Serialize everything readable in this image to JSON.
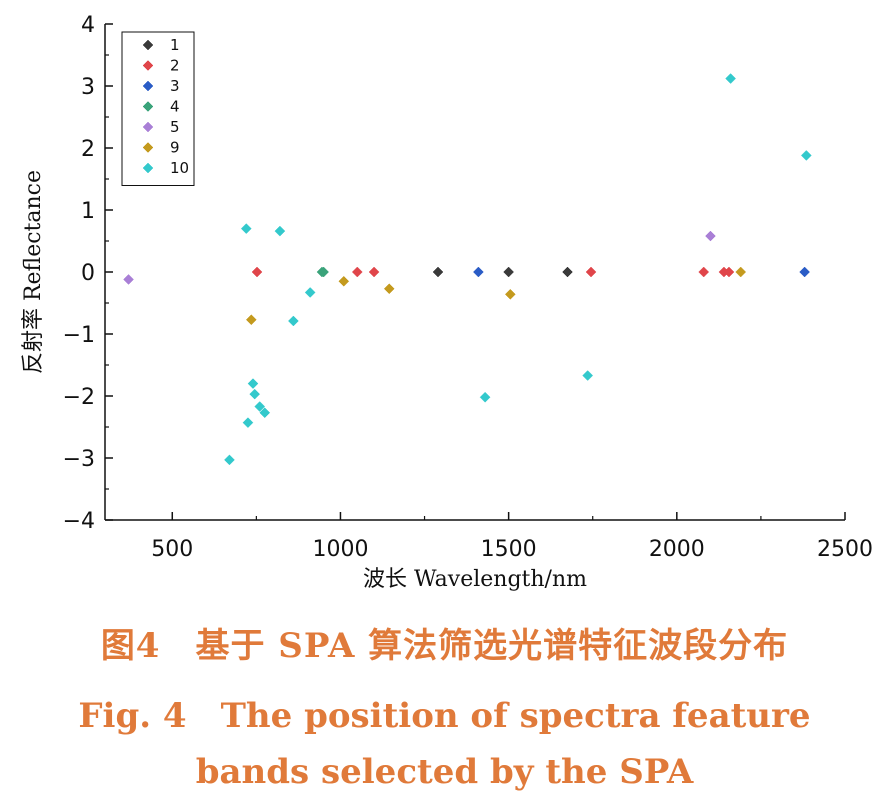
{
  "chart_data": {
    "type": "scatter",
    "title": "",
    "xlabel": "波长 Wavelength/nm",
    "ylabel": "反射率 Reflectance",
    "xlim": [
      300,
      2500
    ],
    "ylim": [
      -4,
      4
    ],
    "x_ticks": [
      500,
      1000,
      1500,
      2000,
      2500
    ],
    "y_ticks": [
      -4,
      -3,
      -2,
      -1,
      0,
      1,
      2,
      3,
      4
    ],
    "x_tick_labels": [
      "500",
      "1000",
      "1500",
      "2000",
      "2500"
    ],
    "y_tick_labels": [
      "−4",
      "−3",
      "−2",
      "−1",
      "0",
      "1",
      "2",
      "3",
      "4"
    ],
    "grid": false,
    "legend_position": "top-left",
    "series": [
      {
        "name": "1",
        "color": "#3a3a3a",
        "points": [
          [
            1290,
            0
          ],
          [
            1500,
            0
          ],
          [
            1675,
            0
          ]
        ]
      },
      {
        "name": "2",
        "color": "#e0454a",
        "points": [
          [
            752,
            0
          ],
          [
            1050,
            0
          ],
          [
            1100,
            0
          ],
          [
            1745,
            0
          ],
          [
            2080,
            0
          ],
          [
            2140,
            0
          ],
          [
            2155,
            0
          ]
        ]
      },
      {
        "name": "3",
        "color": "#2a5cc6",
        "points": [
          [
            1410,
            0
          ],
          [
            2380,
            0
          ]
        ]
      },
      {
        "name": "4",
        "color": "#3aa37a",
        "points": [
          [
            945,
            0
          ],
          [
            950,
            0
          ]
        ]
      },
      {
        "name": "5",
        "color": "#a97fd6",
        "points": [
          [
            370,
            -0.12
          ],
          [
            2100,
            0.58
          ]
        ]
      },
      {
        "name": "9",
        "color": "#c49a1e",
        "points": [
          [
            735,
            -0.77
          ],
          [
            1010,
            -0.15
          ],
          [
            1145,
            -0.27
          ],
          [
            1505,
            -0.36
          ],
          [
            2190,
            0
          ]
        ]
      },
      {
        "name": "10",
        "color": "#33c9cc",
        "points": [
          [
            670,
            -3.03
          ],
          [
            720,
            0.7
          ],
          [
            725,
            -2.43
          ],
          [
            740,
            -1.8
          ],
          [
            745,
            -1.97
          ],
          [
            760,
            -2.17
          ],
          [
            775,
            -2.27
          ],
          [
            820,
            0.66
          ],
          [
            860,
            -0.79
          ],
          [
            910,
            -0.33
          ],
          [
            1430,
            -2.02
          ],
          [
            1735,
            -1.67
          ],
          [
            2160,
            3.12
          ],
          [
            2385,
            1.88
          ]
        ]
      }
    ]
  },
  "caption": {
    "line_cn": "图4　基于 SPA 算法筛选光谱特征波段分布",
    "line_en_1": "Fig. 4　The position of spectra feature",
    "line_en_2": "bands selected by the SPA"
  }
}
